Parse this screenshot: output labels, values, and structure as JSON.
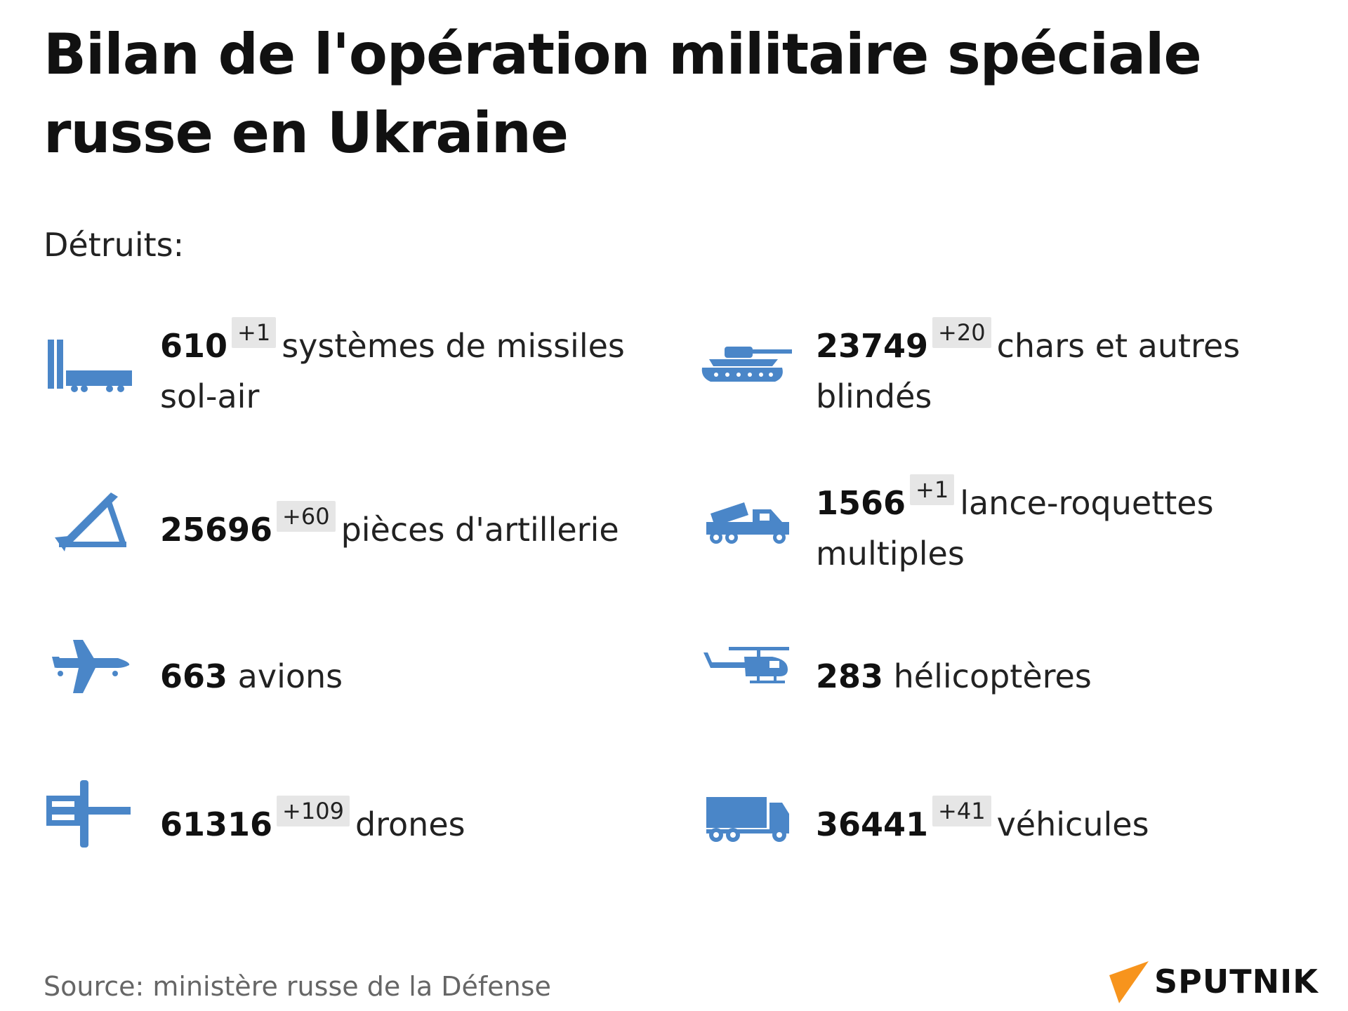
{
  "title": "Bilan de l'opération militaire spéciale russe en Ukraine",
  "subtitle": "Détruits:",
  "accent_color": "#4a86c8",
  "items": [
    {
      "icon": "sam-launcher-icon",
      "value": "610",
      "delta": "+1",
      "text": "systèmes de missiles sol-air"
    },
    {
      "icon": "tank-icon",
      "value": "23749",
      "delta": "+20",
      "text": "chars et autres blindés"
    },
    {
      "icon": "artillery-icon",
      "value": "25696",
      "delta": "+60",
      "text": "pièces d'artillerie"
    },
    {
      "icon": "rocket-launcher-icon",
      "value": "1566",
      "delta": "+1",
      "text": "lance-roquettes multiples"
    },
    {
      "icon": "airplane-icon",
      "value": "663",
      "delta": "",
      "text": "avions"
    },
    {
      "icon": "helicopter-icon",
      "value": "283",
      "delta": "",
      "text": "hélicoptères"
    },
    {
      "icon": "drone-icon",
      "value": "61316",
      "delta": "+109",
      "text": "drones"
    },
    {
      "icon": "truck-icon",
      "value": "36441",
      "delta": "+41",
      "text": "véhicules"
    }
  ],
  "source": "Source: ministère russe de la Défense",
  "logo": {
    "text": "SPUTNIK",
    "color": "#f7941d"
  }
}
